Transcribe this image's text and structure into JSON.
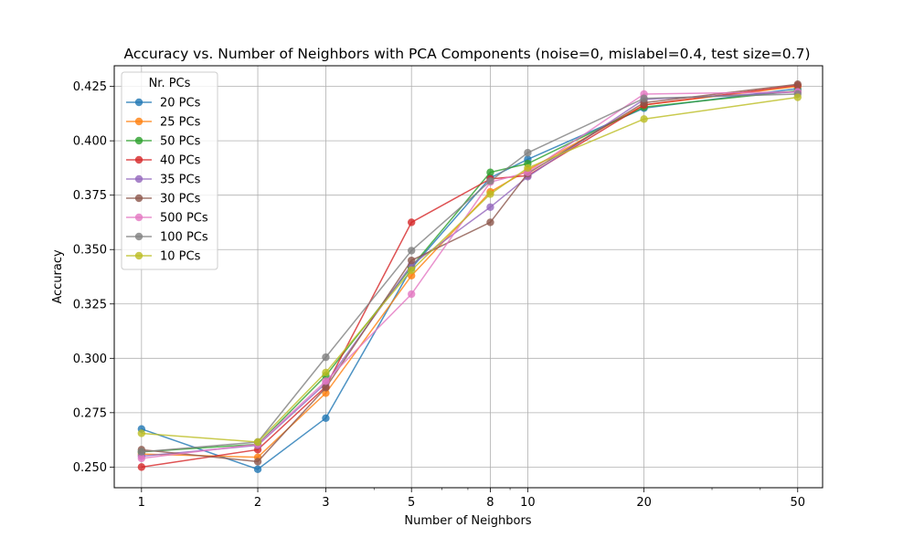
{
  "chart_data": {
    "type": "line",
    "title": "Accuracy vs. Number of Neighbors with PCA Components (noise=0, mislabel=0.4, test size=0.7)",
    "xlabel": "Number of Neighbors",
    "ylabel": "Accuracy",
    "x_scale": "log",
    "x": [
      1,
      2,
      3,
      5,
      8,
      10,
      20,
      50
    ],
    "x_tick_labels": [
      "1",
      "2",
      "3",
      "5",
      "8",
      "10",
      "20",
      "50"
    ],
    "xlim": [
      0.85,
      58
    ],
    "ylim": [
      0.2405,
      0.4345
    ],
    "y_ticks": [
      0.25,
      0.275,
      0.3,
      0.325,
      0.35,
      0.375,
      0.4,
      0.425
    ],
    "y_tick_labels": [
      "0.250",
      "0.275",
      "0.300",
      "0.325",
      "0.350",
      "0.375",
      "0.400",
      "0.425"
    ],
    "grid": true,
    "legend": {
      "title": "Nr. PCs",
      "placement": "top-left"
    },
    "series": [
      {
        "name": "20 PCs",
        "color": "#1f77b4",
        "values": [
          0.2675,
          0.249,
          0.2725,
          0.3415,
          0.383,
          0.3915,
          0.415,
          0.424
        ]
      },
      {
        "name": "25 PCs",
        "color": "#ff7f0e",
        "values": [
          0.256,
          0.2545,
          0.284,
          0.338,
          0.3765,
          0.3865,
          0.4165,
          0.425
        ]
      },
      {
        "name": "50 PCs",
        "color": "#2ca02c",
        "values": [
          0.257,
          0.2605,
          0.292,
          0.342,
          0.3855,
          0.3895,
          0.4155,
          0.423
        ]
      },
      {
        "name": "40 PCs",
        "color": "#d62728",
        "values": [
          0.25,
          0.258,
          0.287,
          0.3625,
          0.3825,
          0.384,
          0.4165,
          0.4255
        ]
      },
      {
        "name": "35 PCs",
        "color": "#9467bd",
        "values": [
          0.255,
          0.26,
          0.2885,
          0.343,
          0.3695,
          0.3835,
          0.419,
          0.4225
        ]
      },
      {
        "name": "30 PCs",
        "color": "#8c564b",
        "values": [
          0.258,
          0.2525,
          0.2865,
          0.345,
          0.3625,
          0.385,
          0.4175,
          0.426
        ]
      },
      {
        "name": "500 PCs",
        "color": "#e377c2",
        "values": [
          0.254,
          0.2605,
          0.2895,
          0.3295,
          0.381,
          0.3855,
          0.4215,
          0.4225
        ]
      },
      {
        "name": "100 PCs",
        "color": "#7f7f7f",
        "values": [
          0.257,
          0.2615,
          0.3005,
          0.3495,
          0.3815,
          0.3945,
          0.4195,
          0.4215
        ]
      },
      {
        "name": "10 PCs",
        "color": "#bcbd22",
        "values": [
          0.2655,
          0.2615,
          0.2935,
          0.3405,
          0.3755,
          0.3875,
          0.41,
          0.42
        ]
      }
    ]
  }
}
